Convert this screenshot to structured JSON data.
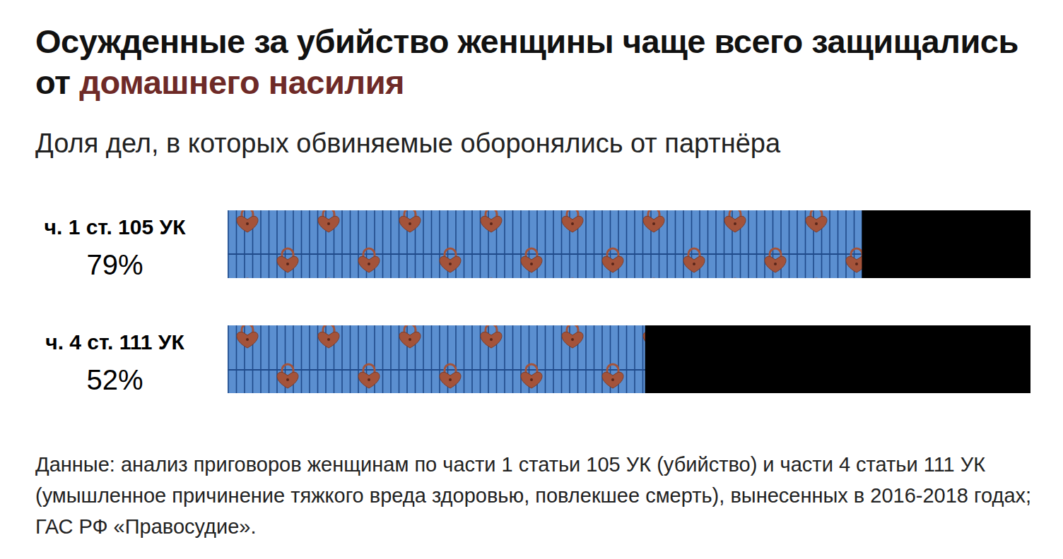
{
  "chart_data": {
    "type": "bar",
    "orientation": "horizontal",
    "title": [
      "Осужденные за убийство женщины чаще всего защищались от",
      "домашнего насилия"
    ],
    "subtitle": "Доля дел, в которых обвиняемые оборонялись от партнёра",
    "caption": "Данные: анализ приговоров женщинам по части 1 статьи 105 УК (убийство) и части 4 статьи 111 УК (умышленное причинение тяжкого вреда здоровью, повлекшее смерть), вынесенных в 2016-2018 годах; ГАС РФ «Правосудие».",
    "categories": [
      "ч. 1 ст. 105 УК",
      "ч. 4 ст. 111 УК"
    ],
    "values": [
      79,
      52
    ],
    "value_labels": [
      "79%",
      "52%"
    ],
    "data_labels": true,
    "tick_labels": false,
    "grid": false,
    "xlim": [
      0,
      100
    ],
    "color": "#5b8fd0"
  }
}
